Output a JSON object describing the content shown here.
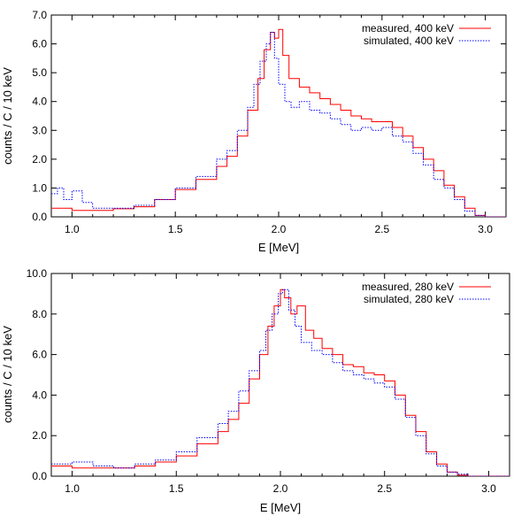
{
  "chart_data": [
    {
      "type": "line",
      "xlabel": "E [MeV]",
      "ylabel": "counts / C / 10 keV",
      "xlim": [
        0.9,
        3.1
      ],
      "ylim": [
        0.0,
        7.0
      ],
      "xticks": [
        1.0,
        1.5,
        2.0,
        2.5,
        3.0
      ],
      "xtick_labels": [
        "1.0",
        "1.5",
        "2.0",
        "2.5",
        "3.0"
      ],
      "yticks": [
        0,
        1,
        2,
        3,
        4,
        5,
        6,
        7
      ],
      "ytick_labels": [
        "0.0",
        "1.0",
        "2.0",
        "3.0",
        "4.0",
        "5.0",
        "6.0",
        "7.0"
      ],
      "legend_position": "top-right",
      "grid": false,
      "series": [
        {
          "name": "measured, 400 keV",
          "color": "#ff0000",
          "style": "solid-step",
          "x": [
            0.9,
            1.0,
            1.1,
            1.2,
            1.3,
            1.4,
            1.5,
            1.6,
            1.7,
            1.75,
            1.8,
            1.85,
            1.9,
            1.93,
            1.96,
            1.98,
            2.0,
            2.02,
            2.05,
            2.1,
            2.15,
            2.2,
            2.25,
            2.3,
            2.35,
            2.4,
            2.45,
            2.5,
            2.55,
            2.6,
            2.65,
            2.7,
            2.75,
            2.8,
            2.85,
            2.9,
            2.95,
            3.0,
            3.1
          ],
          "y": [
            0.3,
            0.22,
            0.22,
            0.28,
            0.35,
            0.6,
            0.95,
            1.3,
            1.75,
            2.1,
            2.8,
            3.7,
            4.8,
            5.8,
            6.4,
            6.2,
            6.5,
            5.6,
            4.8,
            4.5,
            4.3,
            4.1,
            3.9,
            3.7,
            3.5,
            3.4,
            3.3,
            3.3,
            3.1,
            2.8,
            2.4,
            2.0,
            1.6,
            1.1,
            0.7,
            0.3,
            0.05,
            0.0,
            0.0
          ]
        },
        {
          "name": "simulated, 400 keV",
          "color": "#0000ff",
          "style": "dotted-step",
          "x": [
            0.9,
            0.93,
            0.96,
            1.0,
            1.05,
            1.1,
            1.2,
            1.3,
            1.4,
            1.5,
            1.6,
            1.7,
            1.75,
            1.8,
            1.85,
            1.88,
            1.91,
            1.94,
            1.96,
            1.98,
            2.0,
            2.03,
            2.06,
            2.1,
            2.15,
            2.2,
            2.25,
            2.3,
            2.35,
            2.4,
            2.45,
            2.5,
            2.55,
            2.6,
            2.65,
            2.7,
            2.75,
            2.8,
            2.85,
            2.9,
            2.95,
            3.0,
            3.1
          ],
          "y": [
            0.8,
            1.0,
            0.6,
            0.9,
            0.5,
            0.3,
            0.3,
            0.4,
            0.6,
            1.0,
            1.4,
            2.0,
            2.3,
            3.0,
            3.8,
            4.6,
            5.4,
            6.0,
            6.4,
            5.5,
            4.6,
            4.0,
            3.8,
            4.0,
            3.7,
            3.6,
            3.4,
            3.2,
            3.0,
            3.1,
            3.0,
            3.1,
            2.8,
            2.6,
            2.2,
            1.8,
            1.3,
            1.0,
            0.6,
            0.2,
            0.05,
            0.0,
            0.0
          ]
        }
      ]
    },
    {
      "type": "line",
      "xlabel": "E [MeV]",
      "ylabel": "counts / C / 10 keV",
      "xlim": [
        0.9,
        3.1
      ],
      "ylim": [
        0.0,
        10.0
      ],
      "xticks": [
        1.0,
        1.5,
        2.0,
        2.5,
        3.0
      ],
      "xtick_labels": [
        "1.0",
        "1.5",
        "2.0",
        "2.5",
        "3.0"
      ],
      "yticks": [
        0,
        2,
        4,
        6,
        8,
        10
      ],
      "ytick_labels": [
        "0.0",
        "2.0",
        "4.0",
        "6.0",
        "8.0",
        "10.0"
      ],
      "legend_position": "top-right",
      "grid": false,
      "series": [
        {
          "name": "measured, 280 keV",
          "color": "#ff0000",
          "style": "solid-step",
          "x": [
            0.9,
            1.0,
            1.1,
            1.2,
            1.3,
            1.4,
            1.5,
            1.6,
            1.7,
            1.75,
            1.8,
            1.85,
            1.9,
            1.94,
            1.97,
            2.0,
            2.02,
            2.05,
            2.08,
            2.12,
            2.16,
            2.2,
            2.25,
            2.3,
            2.35,
            2.4,
            2.45,
            2.5,
            2.55,
            2.6,
            2.65,
            2.7,
            2.75,
            2.8,
            2.85,
            2.9,
            3.0,
            3.1
          ],
          "y": [
            0.5,
            0.4,
            0.4,
            0.4,
            0.5,
            0.7,
            1.0,
            1.6,
            2.2,
            2.8,
            3.6,
            4.8,
            6.0,
            7.4,
            8.4,
            9.2,
            8.8,
            8.0,
            8.4,
            7.2,
            6.8,
            6.3,
            6.0,
            5.5,
            5.4,
            5.1,
            5.0,
            4.7,
            4.0,
            3.0,
            2.2,
            1.2,
            0.6,
            0.2,
            0.05,
            0.0,
            0.0,
            0.0
          ]
        },
        {
          "name": "simulated, 280 keV",
          "color": "#0000ff",
          "style": "dotted-step",
          "x": [
            0.9,
            1.0,
            1.1,
            1.2,
            1.3,
            1.4,
            1.5,
            1.6,
            1.7,
            1.75,
            1.8,
            1.85,
            1.9,
            1.93,
            1.96,
            1.99,
            2.01,
            2.04,
            2.07,
            2.1,
            2.15,
            2.2,
            2.25,
            2.3,
            2.35,
            2.4,
            2.45,
            2.5,
            2.55,
            2.6,
            2.65,
            2.7,
            2.75,
            2.8,
            2.85,
            2.9,
            3.0,
            3.1
          ],
          "y": [
            0.6,
            0.7,
            0.5,
            0.4,
            0.6,
            0.8,
            1.2,
            1.9,
            2.6,
            3.2,
            4.2,
            5.2,
            6.2,
            7.2,
            8.0,
            9.0,
            9.2,
            8.2,
            7.4,
            6.6,
            6.2,
            6.0,
            5.6,
            5.2,
            5.0,
            4.8,
            4.6,
            4.4,
            3.8,
            2.9,
            2.0,
            1.1,
            0.5,
            0.2,
            0.1,
            0.0,
            0.0,
            0.0
          ]
        }
      ]
    }
  ]
}
